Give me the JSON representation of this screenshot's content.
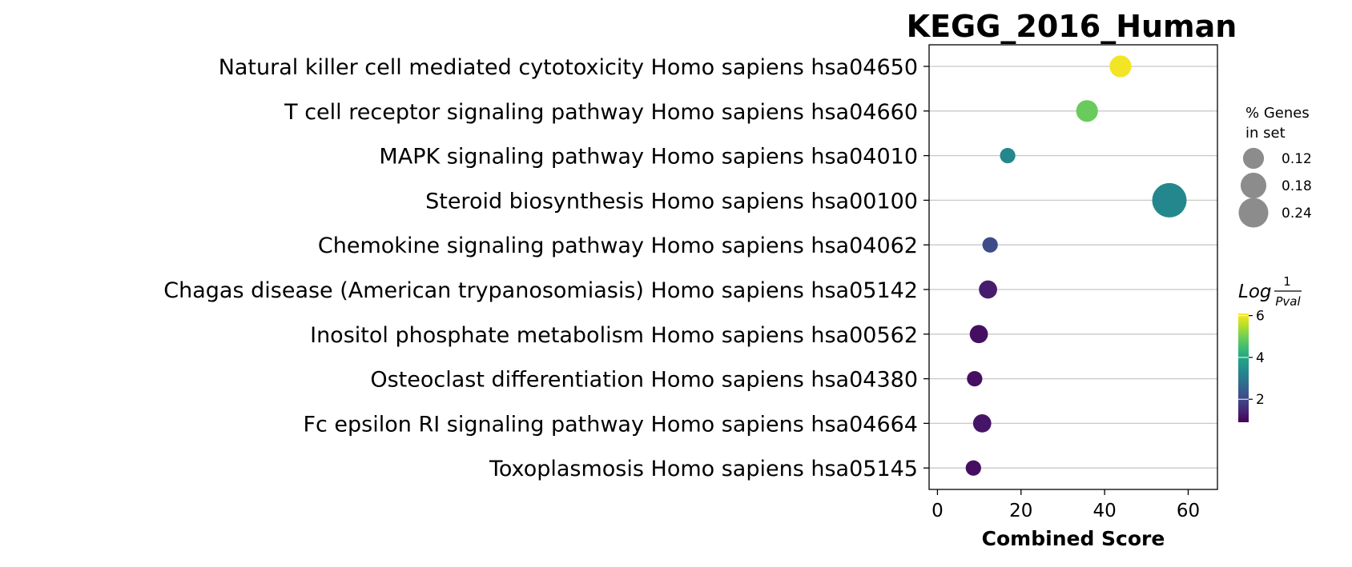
{
  "chart_data": {
    "type": "scatter",
    "title": "KEGG_2016_Human",
    "xlabel": "Combined Score",
    "ylabel": "",
    "xlim": [
      -2,
      67
    ],
    "xticks": [
      0,
      20,
      40,
      60
    ],
    "grid": "horizontal",
    "points": [
      {
        "term": "Natural killer cell mediated cytotoxicity Homo sapiens hsa04650",
        "x": 43.8,
        "log_inv_pval": 6.0,
        "pct_genes": 0.1
      },
      {
        "term": "T cell receptor signaling pathway Homo sapiens hsa04660",
        "x": 35.8,
        "log_inv_pval": 4.9,
        "pct_genes": 0.1
      },
      {
        "term": "MAPK signaling pathway Homo sapiens hsa04010",
        "x": 16.8,
        "log_inv_pval": 3.3,
        "pct_genes": 0.05
      },
      {
        "term": "Steroid biosynthesis Homo sapiens hsa00100",
        "x": 55.5,
        "log_inv_pval": 3.3,
        "pct_genes": 0.25
      },
      {
        "term": "Chemokine signaling pathway Homo sapiens hsa04062",
        "x": 12.6,
        "log_inv_pval": 2.1,
        "pct_genes": 0.05
      },
      {
        "term": "Chagas disease (American trypanosomiasis) Homo sapiens hsa05142",
        "x": 12.1,
        "log_inv_pval": 1.3,
        "pct_genes": 0.07
      },
      {
        "term": "Inositol phosphate metabolism Homo sapiens hsa00562",
        "x": 9.9,
        "log_inv_pval": 1.1,
        "pct_genes": 0.07
      },
      {
        "term": "Osteoclast differentiation Homo sapiens hsa04380",
        "x": 8.9,
        "log_inv_pval": 1.1,
        "pct_genes": 0.05
      },
      {
        "term": "Fc epsilon RI signaling pathway Homo sapiens hsa04664",
        "x": 10.7,
        "log_inv_pval": 1.2,
        "pct_genes": 0.07
      },
      {
        "term": "Toxoplasmosis Homo sapiens hsa05145",
        "x": 8.6,
        "log_inv_pval": 1.1,
        "pct_genes": 0.05
      }
    ],
    "size_legend": {
      "title_line1": "% Genes",
      "title_line2": "in set",
      "entries": [
        "0.12",
        "0.18",
        "0.24"
      ],
      "values": [
        0.12,
        0.18,
        0.24
      ]
    },
    "colorbar": {
      "title_main": "Log",
      "title_num": "1",
      "title_den": "Pval",
      "min": 0.9,
      "max": 6.1,
      "ticks": [
        2,
        4,
        6
      ],
      "colormap": "viridis"
    },
    "colors": {
      "grid": "#c8c8c8",
      "legend_marker": "#8c8c8c"
    }
  }
}
